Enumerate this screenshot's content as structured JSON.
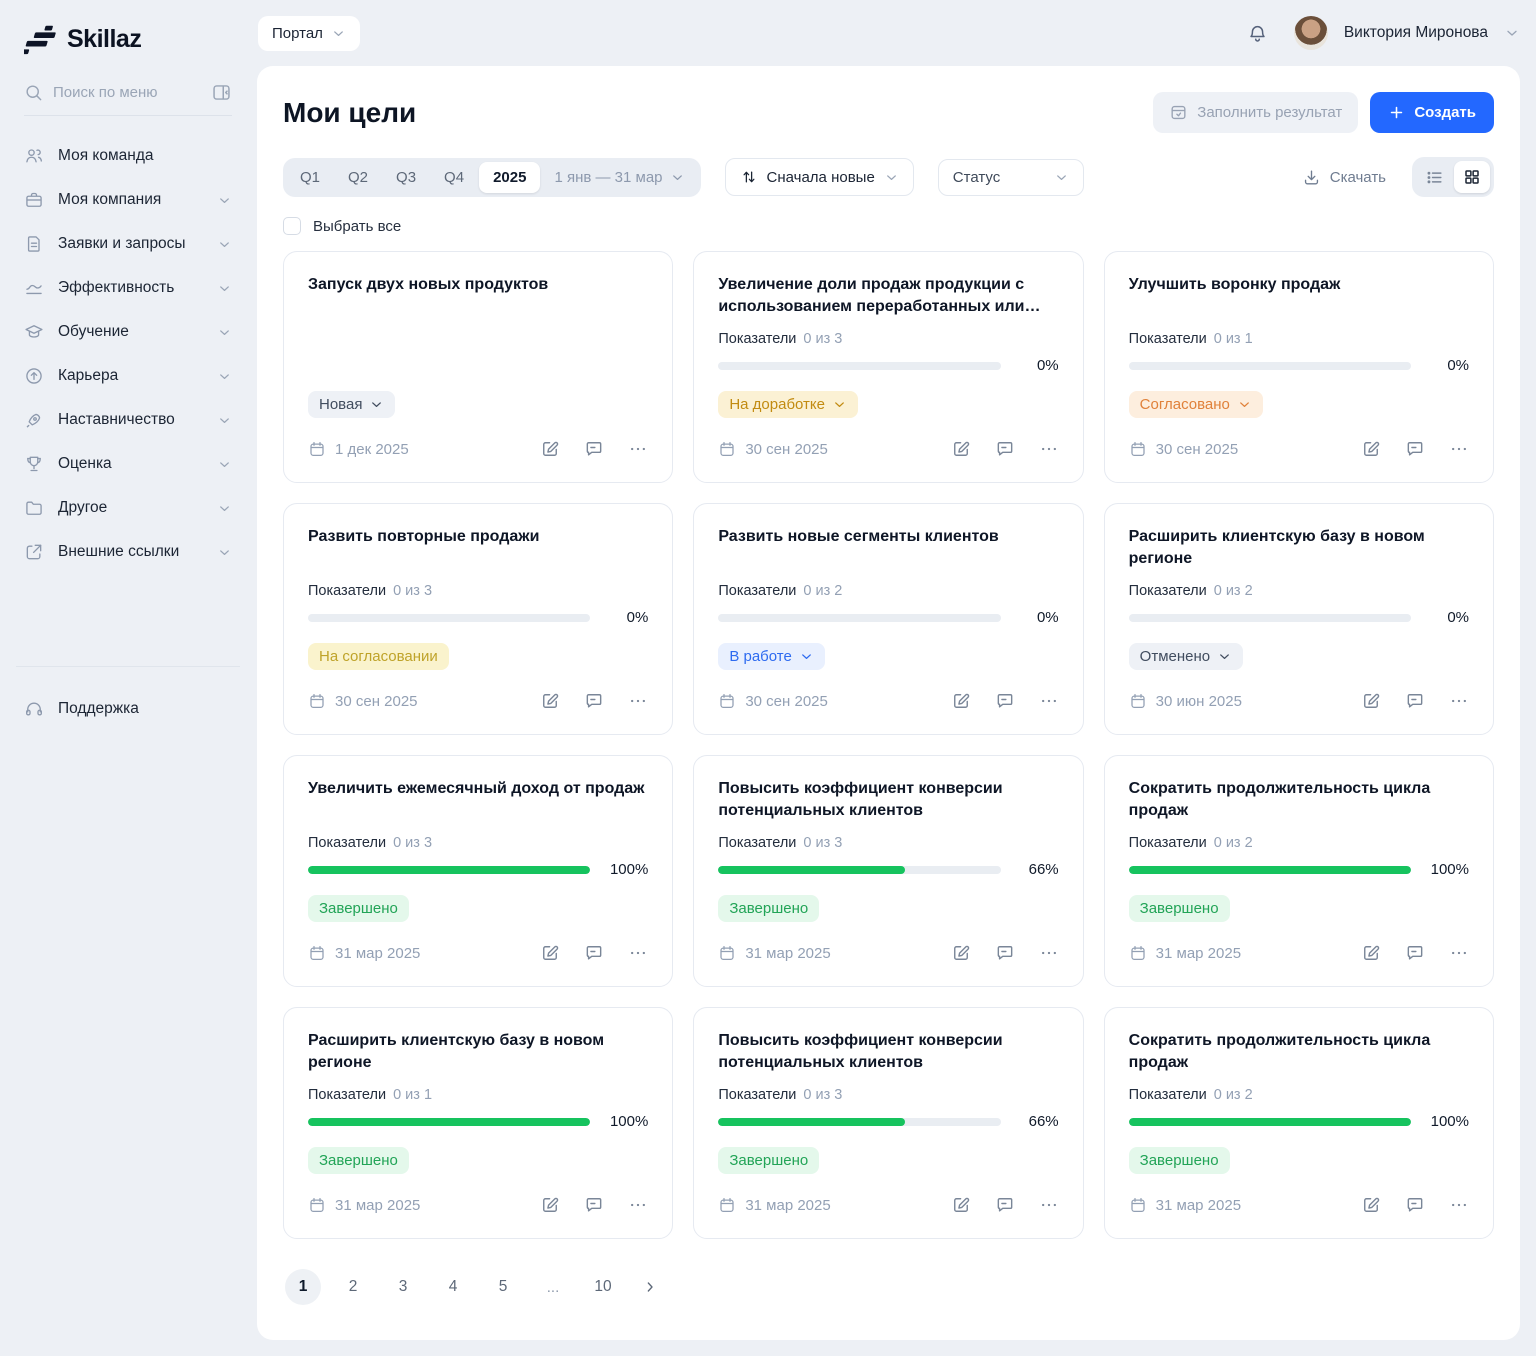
{
  "brand": {
    "name": "Skillaz"
  },
  "colors": {
    "accent": "#2368ff",
    "green": "#16c35e",
    "page_bg": "#edf0f5"
  },
  "topbar": {
    "portal_label": "Портал",
    "user_name": "Виктория Миронова"
  },
  "sidebar": {
    "search_placeholder": "Поиск по меню",
    "items": [
      {
        "id": "team",
        "icon": "team-icon",
        "label": "Моя команда",
        "chevron": false
      },
      {
        "id": "company",
        "icon": "briefcase-icon",
        "label": "Моя компания",
        "chevron": true
      },
      {
        "id": "requests",
        "icon": "document-icon",
        "label": "Заявки и запросы",
        "chevron": true
      },
      {
        "id": "performance",
        "icon": "trend-icon",
        "label": "Эффективность",
        "chevron": true
      },
      {
        "id": "learning",
        "icon": "graduation-icon",
        "label": "Обучение",
        "chevron": true
      },
      {
        "id": "career",
        "icon": "arrow-up-circle-icon",
        "label": "Карьера",
        "chevron": true
      },
      {
        "id": "mentoring",
        "icon": "rocket-icon",
        "label": "Наставничество",
        "chevron": true
      },
      {
        "id": "assessment",
        "icon": "trophy-icon",
        "label": "Оценка",
        "chevron": true
      },
      {
        "id": "other",
        "icon": "folder-icon",
        "label": "Другое",
        "chevron": true
      },
      {
        "id": "external-links",
        "icon": "external-link-icon",
        "label": "Внешние ссылки",
        "chevron": true
      }
    ],
    "support_label": "Поддержка"
  },
  "header": {
    "title": "Мои цели",
    "fill_result_label": "Заполнить результат",
    "create_label": "Создать"
  },
  "filters": {
    "quarters": [
      "Q1",
      "Q2",
      "Q3",
      "Q4"
    ],
    "year": "2025",
    "date_range": "1 янв — 31 мар",
    "sort_label": "Сначала новые",
    "status_label": "Статус",
    "download_label": "Скачать",
    "select_all_label": "Выбрать все"
  },
  "goals": [
    {
      "title": "Запуск двух новых продуктов",
      "indicators": null,
      "status": {
        "label": "Новая",
        "type": "gray",
        "chevron": true
      },
      "date": "1 дек 2025"
    },
    {
      "title": "Увеличение доли продаж продукции с использованием переработанных или би...",
      "indicators": {
        "label": "Показатели",
        "count": "0 из 3",
        "percent": 0,
        "percent_label": "0%"
      },
      "status": {
        "label": "На доработке",
        "type": "amber",
        "chevron": true
      },
      "date": "30 сен 2025"
    },
    {
      "title": "Улучшить воронку продаж",
      "indicators": {
        "label": "Показатели",
        "count": "0 из 1",
        "percent": 0,
        "percent_label": "0%"
      },
      "status": {
        "label": "Согласовано",
        "type": "orange",
        "chevron": true
      },
      "date": "30 сен 2025"
    },
    {
      "title": "Развить повторные продажи",
      "indicators": {
        "label": "Показатели",
        "count": "0 из 3",
        "percent": 0,
        "percent_label": "0%"
      },
      "status": {
        "label": "На согласовании",
        "type": "yellow",
        "chevron": false
      },
      "date": "30 сен 2025"
    },
    {
      "title": "Развить новые сегменты клиентов",
      "indicators": {
        "label": "Показатели",
        "count": "0 из 2",
        "percent": 0,
        "percent_label": "0%"
      },
      "status": {
        "label": "В работе",
        "type": "blue",
        "chevron": true
      },
      "date": "30 сен 2025"
    },
    {
      "title": "Расширить клиентскую базу в новом регионе",
      "indicators": {
        "label": "Показатели",
        "count": "0 из 2",
        "percent": 0,
        "percent_label": "0%"
      },
      "status": {
        "label": "Отменено",
        "type": "gray",
        "chevron": true
      },
      "date": "30 июн 2025"
    },
    {
      "title": "Увеличить ежемесячный доход от продаж",
      "indicators": {
        "label": "Показатели",
        "count": "0 из 3",
        "percent": 100,
        "percent_label": "100%"
      },
      "status": {
        "label": "Завершено",
        "type": "green",
        "chevron": false
      },
      "date": "31 мар 2025"
    },
    {
      "title": "Повысить коэффициент конверсии потенциальных клиентов",
      "indicators": {
        "label": "Показатели",
        "count": "0 из 3",
        "percent": 66,
        "percent_label": "66%"
      },
      "status": {
        "label": "Завершено",
        "type": "green",
        "chevron": false
      },
      "date": "31 мар 2025"
    },
    {
      "title": "Сократить продолжительность цикла продаж",
      "indicators": {
        "label": "Показатели",
        "count": "0 из 2",
        "percent": 100,
        "percent_label": "100%"
      },
      "status": {
        "label": "Завершено",
        "type": "green",
        "chevron": false
      },
      "date": "31 мар 2025"
    },
    {
      "title": "Расширить клиентскую базу в новом регионе",
      "indicators": {
        "label": "Показатели",
        "count": "0 из 1",
        "percent": 100,
        "percent_label": "100%"
      },
      "status": {
        "label": "Завершено",
        "type": "green",
        "chevron": false
      },
      "date": "31 мар 2025"
    },
    {
      "title": "Повысить коэффициент конверсии потенциальных клиентов",
      "indicators": {
        "label": "Показатели",
        "count": "0 из 3",
        "percent": 66,
        "percent_label": "66%"
      },
      "status": {
        "label": "Завершено",
        "type": "green",
        "chevron": false
      },
      "date": "31 мар 2025"
    },
    {
      "title": "Сократить продолжительность цикла продаж",
      "indicators": {
        "label": "Показатели",
        "count": "0 из 2",
        "percent": 100,
        "percent_label": "100%"
      },
      "status": {
        "label": "Завершено",
        "type": "green",
        "chevron": false
      },
      "date": "31 мар 2025"
    }
  ],
  "pagination": {
    "pages": [
      "1",
      "2",
      "3",
      "4",
      "5",
      "...",
      "10"
    ],
    "active": "1"
  }
}
